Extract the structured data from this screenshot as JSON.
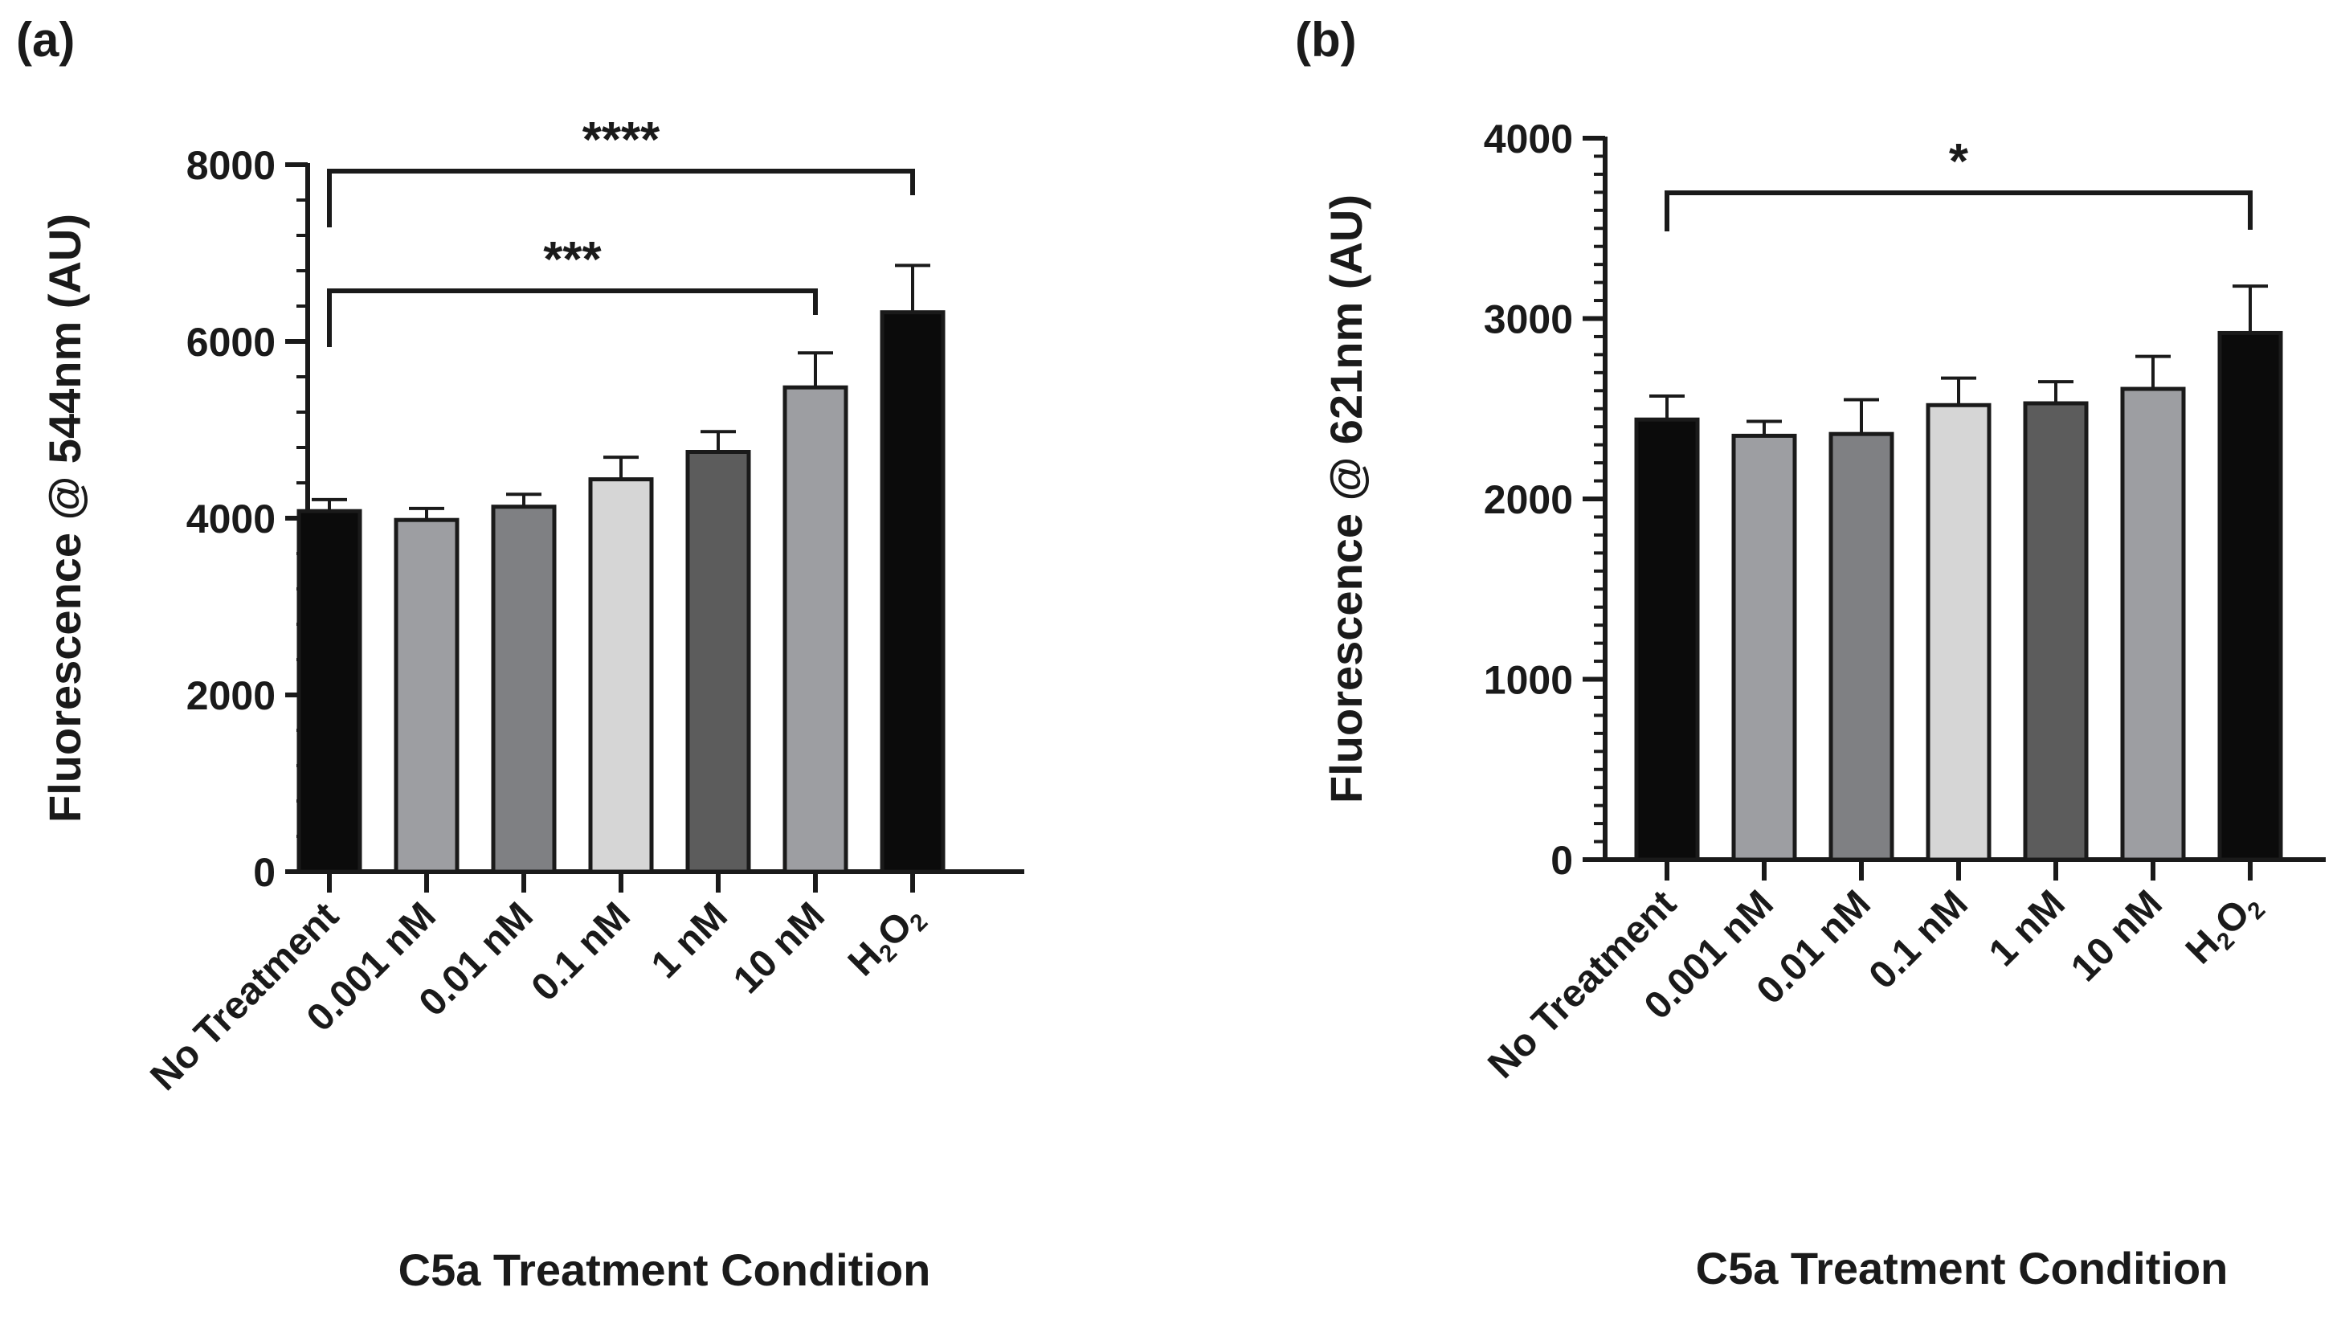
{
  "chart_data": [
    {
      "panel_label": "(a)",
      "type": "bar",
      "title": "",
      "xlabel": "C5a Treatment Condition",
      "ylabel": "Fluorescence @ 544nm (AU)",
      "categories": [
        "No Treatment",
        "0.001 nM",
        "0.01 nM",
        "0.1 nM",
        "1 nM",
        "10 nM",
        "H2O2"
      ],
      "values": [
        4080,
        3980,
        4130,
        4440,
        4750,
        5480,
        6330
      ],
      "errors": [
        130,
        130,
        140,
        250,
        230,
        390,
        530
      ],
      "bar_colors": [
        "#0b0b0b",
        "#9d9ea2",
        "#7f8083",
        "#d6d6d6",
        "#5c5c5c",
        "#9d9ea2",
        "#0b0b0b"
      ],
      "ylim": [
        0,
        8000
      ],
      "yticks": [
        "0",
        "2000",
        "4000",
        "6000",
        "8000"
      ],
      "y_minor_step": 400,
      "significance": [
        {
          "from": 0,
          "to": 6,
          "label": "****"
        },
        {
          "from": 0,
          "to": 5,
          "label": "***"
        }
      ],
      "grid": false
    },
    {
      "panel_label": "(b)",
      "type": "bar",
      "title": "",
      "xlabel": "C5a Treatment Condition",
      "ylabel": "Fluorescence @ 621nm (AU)",
      "categories": [
        "No Treatment",
        "0.001 nM",
        "0.01 nM",
        "0.1 nM",
        "1 nM",
        "10 nM",
        "H2O2"
      ],
      "values": [
        2440,
        2350,
        2360,
        2520,
        2530,
        2610,
        2920
      ],
      "errors": [
        130,
        80,
        190,
        150,
        120,
        180,
        260
      ],
      "bar_colors": [
        "#0b0b0b",
        "#9d9ea2",
        "#7f8083",
        "#d6d6d6",
        "#5c5c5c",
        "#9d9ea2",
        "#0b0b0b"
      ],
      "ylim": [
        0,
        4000
      ],
      "yticks": [
        "0",
        "1000",
        "2000",
        "3000",
        "4000"
      ],
      "y_minor_step": 100,
      "significance": [
        {
          "from": 0,
          "to": 6,
          "label": "*"
        }
      ],
      "grid": false
    }
  ]
}
